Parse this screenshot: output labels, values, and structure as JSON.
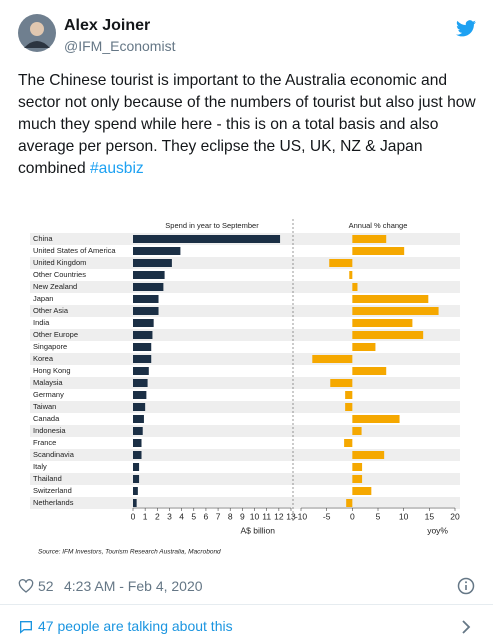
{
  "tweet": {
    "name": "Alex Joiner",
    "handle": "@IFM_Economist",
    "text": "The Chinese tourist is important to the Australia economic and sector not only because of the numbers of tourist but also just how much they spend while here - this is on a total basis and also average per person. They eclipse the US, UK, NZ & Japan combined",
    "hashtag": "#ausbiz",
    "likes": "52",
    "time": "4:23 AM - Feb 4, 2020",
    "talking": "47 people are talking about this"
  },
  "chart_data": [
    {
      "type": "bar",
      "orientation": "horizontal",
      "title": "Spend in year to September",
      "x_label": "A$ billion",
      "color": "#1b2f45",
      "categories": [
        "China",
        "United States of America",
        "United Kingdom",
        "Other Countries",
        "New Zealand",
        "Japan",
        "Other Asia",
        "India",
        "Other Europe",
        "Singapore",
        "Korea",
        "Hong Kong",
        "Malaysia",
        "Germany",
        "Taiwan",
        "Canada",
        "Indonesia",
        "France",
        "Scandinavia",
        "Italy",
        "Thailand",
        "Switzerland",
        "Netherlands"
      ],
      "values": [
        12.1,
        3.9,
        3.2,
        2.6,
        2.5,
        2.1,
        2.1,
        1.7,
        1.6,
        1.5,
        1.5,
        1.3,
        1.2,
        1.1,
        1.0,
        0.9,
        0.8,
        0.7,
        0.7,
        0.5,
        0.5,
        0.4,
        0.3
      ],
      "xlim": [
        0,
        13
      ],
      "xticks": [
        0,
        1,
        2,
        3,
        4,
        5,
        6,
        7,
        8,
        9,
        10,
        11,
        12,
        13
      ],
      "source": "Source: IFM Investors, Tourism Research Australia, Macrobond"
    },
    {
      "type": "bar",
      "orientation": "horizontal",
      "title": "Annual % change",
      "x_label": "yoy%",
      "color": "#f5a800",
      "values": [
        6.6,
        10.1,
        -4.5,
        -0.6,
        1.0,
        14.8,
        16.8,
        11.7,
        13.8,
        4.5,
        -7.8,
        6.6,
        -4.3,
        -1.4,
        -1.4,
        9.2,
        1.8,
        -1.6,
        6.2,
        1.9,
        1.9,
        3.7,
        -1.2
      ],
      "xlim": [
        -10,
        20
      ],
      "xticks": [
        -10,
        -5,
        0,
        5,
        10,
        15,
        20
      ]
    }
  ]
}
